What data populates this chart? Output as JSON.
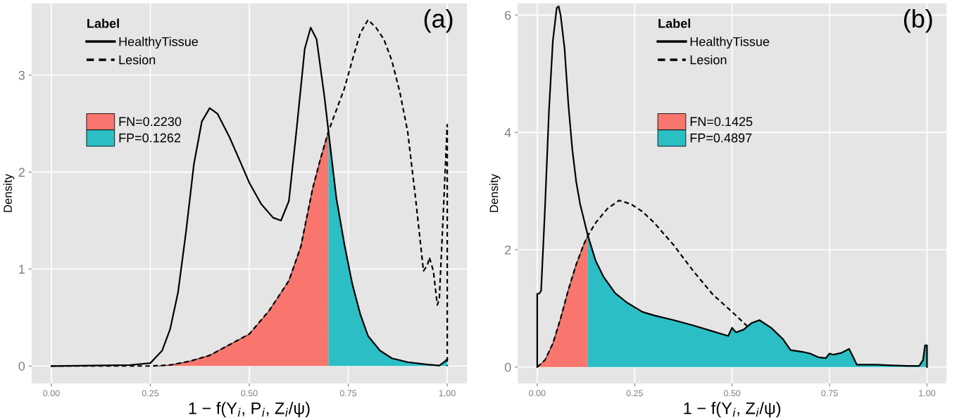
{
  "chart_data": [
    {
      "type": "line",
      "xlabel": "1 − f(Y$_{i}$, P$_{i}$, Z$_{i}$/ψ)",
      "ylabel": "Density",
      "legend_title": "Label",
      "legend": "top left",
      "grid": true,
      "annotations": [
        "(a)"
      ],
      "xlim": [
        -0.05,
        1.05
      ],
      "ylim": [
        -0.18,
        3.74
      ],
      "xticks": [
        {
          "value": 0,
          "label": "0.00"
        },
        {
          "value": 0.25,
          "label": "0.25"
        },
        {
          "value": 0.5,
          "label": "0.50"
        },
        {
          "value": 0.75,
          "label": "0.75"
        },
        {
          "value": 1,
          "label": "1.00"
        }
      ],
      "yticks": [
        0,
        1,
        2,
        3
      ],
      "series": [
        {
          "name": "FN=0.2230",
          "type": "area",
          "color": "#f8766d",
          "x": [
            0.27,
            0.3,
            0.35,
            0.4,
            0.45,
            0.5,
            0.55,
            0.6,
            0.63,
            0.66,
            0.68,
            0.7
          ],
          "values": [
            0,
            0.01,
            0.05,
            0.11,
            0.22,
            0.33,
            0.57,
            0.88,
            1.23,
            1.83,
            2.14,
            2.42
          ]
        },
        {
          "name": "FP=0.1262",
          "type": "area",
          "color": "#2bbec5",
          "x": [
            0.7,
            0.72,
            0.74,
            0.76,
            0.78,
            0.8,
            0.83,
            0.86,
            0.9,
            0.95,
            0.98,
            0.995,
            1.0
          ],
          "values": [
            2.42,
            1.73,
            1.26,
            0.85,
            0.54,
            0.31,
            0.16,
            0.08,
            0.04,
            0.015,
            0.005,
            0.05,
            0.07
          ]
        },
        {
          "name": "HealthyTissue",
          "line_style": "solid",
          "color": "#000000",
          "x": [
            0,
            0.2,
            0.25,
            0.28,
            0.3,
            0.32,
            0.34,
            0.36,
            0.38,
            0.4,
            0.42,
            0.45,
            0.48,
            0.5,
            0.53,
            0.56,
            0.58,
            0.6,
            0.62,
            0.64,
            0.655,
            0.67,
            0.69,
            0.7,
            0.72,
            0.74,
            0.76,
            0.78,
            0.8,
            0.83,
            0.86,
            0.9,
            0.95,
            0.98,
            0.995,
            1.0
          ],
          "values": [
            0,
            0.01,
            0.03,
            0.16,
            0.38,
            0.76,
            1.38,
            2.08,
            2.52,
            2.66,
            2.6,
            2.36,
            2.08,
            1.89,
            1.67,
            1.53,
            1.5,
            1.7,
            2.46,
            3.27,
            3.49,
            3.37,
            2.77,
            2.42,
            1.73,
            1.26,
            0.85,
            0.54,
            0.31,
            0.16,
            0.08,
            0.04,
            0.015,
            0.005,
            0.05,
            0.07
          ]
        },
        {
          "name": "Lesion",
          "line_style": "dashed",
          "color": "#000000",
          "x": [
            0,
            0.25,
            0.3,
            0.35,
            0.4,
            0.45,
            0.5,
            0.55,
            0.6,
            0.63,
            0.66,
            0.68,
            0.7,
            0.72,
            0.74,
            0.76,
            0.78,
            0.8,
            0.82,
            0.84,
            0.86,
            0.88,
            0.9,
            0.92,
            0.94,
            0.95,
            0.955,
            0.965,
            0.975,
            0.98,
            0.99,
            1.0,
            1.0
          ],
          "values": [
            0,
            0,
            0.01,
            0.05,
            0.11,
            0.22,
            0.33,
            0.57,
            0.88,
            1.23,
            1.83,
            2.14,
            2.42,
            2.64,
            2.86,
            3.15,
            3.43,
            3.57,
            3.49,
            3.37,
            3.15,
            2.83,
            2.42,
            1.73,
            0.98,
            1.04,
            1.12,
            0.98,
            0.63,
            0.69,
            1.57,
            2.49,
            0
          ]
        }
      ]
    },
    {
      "type": "line",
      "xlabel": "1 − f(Y$_{i}$, Z$_{i}$/ψ)",
      "ylabel": "Density",
      "legend_title": "Label",
      "legend": "top",
      "grid": true,
      "annotations": [
        "(b)"
      ],
      "xlim": [
        -0.05,
        1.05
      ],
      "ylim": [
        -0.28,
        6.2
      ],
      "xticks": [
        {
          "value": 0,
          "label": "0.00"
        },
        {
          "value": 0.25,
          "label": "0.25"
        },
        {
          "value": 0.5,
          "label": "0.50"
        },
        {
          "value": 0.75,
          "label": "0.75"
        },
        {
          "value": 1,
          "label": "1.00"
        }
      ],
      "yticks": [
        0,
        2,
        4,
        6
      ],
      "series": [
        {
          "name": "FN=0.1425",
          "type": "area",
          "color": "#f8766d",
          "x": [
            0,
            0.02,
            0.04,
            0.06,
            0.08,
            0.1,
            0.12,
            0.13
          ],
          "values": [
            0,
            0.12,
            0.4,
            0.83,
            1.32,
            1.75,
            2.1,
            2.24
          ]
        },
        {
          "name": "FP=0.4897",
          "type": "area",
          "color": "#2bbec5",
          "x": [
            0.13,
            0.15,
            0.17,
            0.2,
            0.23,
            0.25,
            0.27,
            0.3,
            0.35,
            0.4,
            0.45,
            0.49,
            0.5,
            0.51,
            0.53,
            0.55,
            0.57,
            0.6,
            0.63,
            0.65,
            0.68,
            0.7,
            0.72,
            0.74,
            0.75,
            0.76,
            0.78,
            0.8,
            0.81,
            0.82,
            0.85,
            0.87,
            0.9,
            0.95,
            0.98,
            0.99,
            0.995,
            1.0
          ],
          "values": [
            2.24,
            1.81,
            1.54,
            1.26,
            1.1,
            1.02,
            0.94,
            0.88,
            0.8,
            0.71,
            0.61,
            0.53,
            0.67,
            0.59,
            0.64,
            0.75,
            0.8,
            0.67,
            0.48,
            0.29,
            0.26,
            0.23,
            0.17,
            0.15,
            0.23,
            0.21,
            0.24,
            0.31,
            0.18,
            0.04,
            0.04,
            0.04,
            0.03,
            0.02,
            0.02,
            0.12,
            0.37,
            0.37
          ]
        },
        {
          "name": "HealthyTissue",
          "line_style": "solid",
          "color": "#000000",
          "x": [
            0,
            0,
            0.005,
            0.01,
            0.02,
            0.03,
            0.04,
            0.05,
            0.055,
            0.06,
            0.07,
            0.08,
            0.09,
            0.1,
            0.11,
            0.12,
            0.13,
            0.15,
            0.17,
            0.2,
            0.23,
            0.25,
            0.27,
            0.3,
            0.35,
            0.4,
            0.45,
            0.49,
            0.5,
            0.51,
            0.53,
            0.55,
            0.57,
            0.6,
            0.63,
            0.65,
            0.68,
            0.7,
            0.72,
            0.74,
            0.75,
            0.76,
            0.78,
            0.8,
            0.81,
            0.82,
            0.85,
            0.87,
            0.9,
            0.95,
            0.98,
            0.99,
            0.995,
            1.0,
            1.0
          ],
          "values": [
            0,
            1.25,
            1.25,
            1.3,
            2.72,
            4.35,
            5.55,
            6.12,
            6.15,
            6.0,
            5.44,
            4.47,
            3.71,
            3.16,
            2.78,
            2.51,
            2.24,
            1.81,
            1.54,
            1.26,
            1.1,
            1.02,
            0.94,
            0.88,
            0.8,
            0.71,
            0.61,
            0.53,
            0.67,
            0.59,
            0.64,
            0.75,
            0.8,
            0.67,
            0.48,
            0.29,
            0.26,
            0.23,
            0.17,
            0.15,
            0.23,
            0.21,
            0.24,
            0.31,
            0.18,
            0.04,
            0.04,
            0.04,
            0.03,
            0.02,
            0.02,
            0.12,
            0.37,
            0.37,
            0
          ]
        },
        {
          "name": "Lesion",
          "line_style": "dashed",
          "color": "#000000",
          "x": [
            0,
            0.02,
            0.04,
            0.06,
            0.08,
            0.1,
            0.12,
            0.13,
            0.15,
            0.18,
            0.21,
            0.24,
            0.27,
            0.3,
            0.35,
            0.4,
            0.45,
            0.5,
            0.54
          ],
          "values": [
            0,
            0.12,
            0.4,
            0.83,
            1.32,
            1.75,
            2.1,
            2.24,
            2.46,
            2.7,
            2.84,
            2.78,
            2.65,
            2.46,
            2.08,
            1.64,
            1.24,
            0.94,
            0.69
          ]
        }
      ]
    }
  ]
}
